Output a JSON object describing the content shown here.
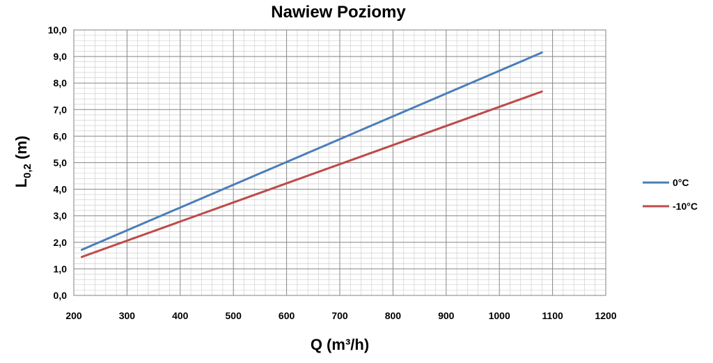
{
  "chart_data": {
    "type": "line",
    "title": "Nawiew Poziomy",
    "xlabel": "Q (m³/h)",
    "ylabel": "L0,2 (m)",
    "ylabel_main": "L",
    "ylabel_sub": "0,2",
    "ylabel_rest": " (m)",
    "xlim": [
      200,
      1200
    ],
    "ylim": [
      0,
      10
    ],
    "x_ticks": [
      "200",
      "300",
      "400",
      "500",
      "600",
      "700",
      "800",
      "900",
      "1000",
      "1100",
      "1200"
    ],
    "y_ticks": [
      "0,0",
      "1,0",
      "2,0",
      "3,0",
      "4,0",
      "5,0",
      "6,0",
      "7,0",
      "8,0",
      "9,0",
      "10,0"
    ],
    "grid": true,
    "legend_position": "right",
    "series": [
      {
        "name": "0°C",
        "color": "#4a7ebb",
        "points": [
          [
            215,
            1.72
          ],
          [
            1080,
            9.15
          ]
        ]
      },
      {
        "name": "-10°C",
        "color": "#be4b48",
        "points": [
          [
            215,
            1.45
          ],
          [
            1080,
            7.68
          ]
        ]
      }
    ]
  }
}
